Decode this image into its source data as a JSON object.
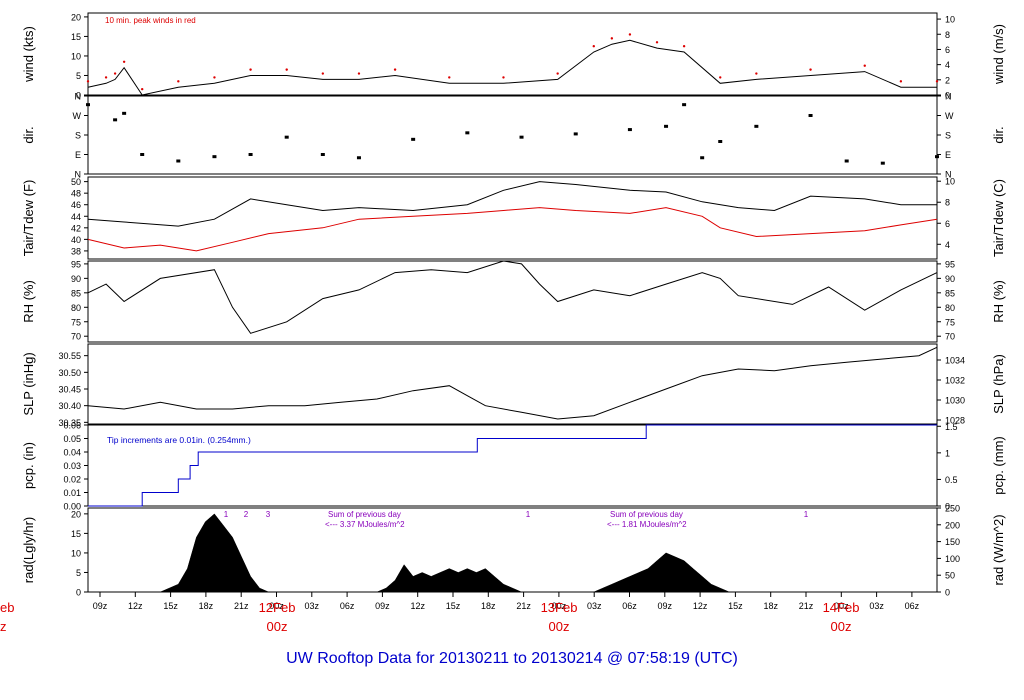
{
  "footer": {
    "text": "UW Rooftop Data for 20130211  to  20130214 @ 07:58:19  (UTC)"
  },
  "colors": {
    "red": "#dd0000",
    "blue": "#0000cc",
    "black": "#000000",
    "purple": "#8800bb"
  },
  "time_axis": {
    "ticks": [
      "09z",
      "12z",
      "15z",
      "18z",
      "21z",
      "00z",
      "03z",
      "06z",
      "09z",
      "12z",
      "15z",
      "18z",
      "21z",
      "00z",
      "03z",
      "06z",
      "09z",
      "12z",
      "15z",
      "18z",
      "21z",
      "00z",
      "03z",
      "06z"
    ],
    "day_labels": [
      {
        "date": "12Feb",
        "hour": "00z"
      },
      {
        "date": "13Feb",
        "hour": "00z"
      },
      {
        "date": "14Feb",
        "hour": "00z"
      }
    ],
    "cut_left_date": "eb",
    "cut_left_hour": "z"
  },
  "chart_data": [
    {
      "type": "line",
      "id": "wind",
      "ylabel_left": "wind (kts)",
      "ylabel_right": "wind (m/s)",
      "ylim": [
        0,
        21
      ],
      "yticks_left": [
        "0",
        "5",
        "10",
        "15",
        "20"
      ],
      "yticks_left_values": [
        0,
        5,
        10,
        15,
        20
      ],
      "right_ylim": [
        0,
        10.8
      ],
      "yticks_right": [
        "0",
        "2",
        "4",
        "6",
        "8",
        "10"
      ],
      "yticks_right_values": [
        0,
        2,
        4,
        6,
        8,
        10
      ],
      "annotation": "10 min. peak winds in red",
      "series": [
        {
          "color": "#000000",
          "x": [
            0,
            2,
            3,
            4,
            6,
            10,
            14,
            18,
            22,
            26,
            30,
            34,
            40,
            46,
            52,
            56,
            58,
            60,
            63,
            66,
            70,
            74,
            80,
            86,
            90,
            94
          ],
          "values": [
            2,
            3,
            4,
            7,
            0,
            2,
            3,
            5,
            5,
            4,
            4,
            5,
            3,
            3,
            4,
            11,
            13,
            14,
            12,
            11,
            3,
            4,
            5,
            6,
            2,
            2
          ]
        }
      ]
    },
    {
      "type": "scatter",
      "id": "dir",
      "ylabel_left": "dir.",
      "ylabel_right": "dir.",
      "yticks_left": [
        "N",
        "W",
        "S",
        "E",
        "N"
      ],
      "yticks_right": [
        "N",
        "W",
        "S",
        "E",
        "N"
      ],
      "yticks_values": [
        360,
        270,
        180,
        90,
        0
      ],
      "ylim": [
        0,
        360
      ],
      "x": [
        0,
        3,
        4,
        6,
        10,
        14,
        18,
        22,
        26,
        30,
        36,
        42,
        48,
        54,
        60,
        64,
        66,
        68,
        70,
        74,
        80,
        84,
        88,
        94
      ],
      "values": [
        320,
        250,
        280,
        90,
        60,
        80,
        90,
        170,
        90,
        75,
        160,
        190,
        170,
        185,
        205,
        220,
        320,
        75,
        150,
        220,
        270,
        60,
        50,
        80
      ]
    },
    {
      "type": "line",
      "id": "temp",
      "ylabel_left": "Tair/Tdew (F)",
      "ylabel_right": "Tair/Tdew (C)",
      "ylim": [
        36.6,
        50.8
      ],
      "yticks_left": [
        "38",
        "40",
        "42",
        "44",
        "46",
        "48",
        "50"
      ],
      "yticks_left_values": [
        38,
        40,
        42,
        44,
        46,
        48,
        50
      ],
      "right_ylim": [
        2.6,
        10.4
      ],
      "yticks_right": [
        "4",
        "6",
        "8",
        "10"
      ],
      "yticks_right_values": [
        4,
        6,
        8,
        10
      ],
      "series": [
        {
          "name": "Tair",
          "color": "#000000",
          "x": [
            0,
            4,
            10,
            14,
            18,
            22,
            26,
            30,
            36,
            42,
            46,
            50,
            54,
            60,
            64,
            68,
            72,
            76,
            80,
            86,
            90,
            94
          ],
          "values": [
            43.5,
            43,
            42.3,
            43.5,
            47,
            46,
            45,
            45.5,
            45,
            46,
            48.5,
            50,
            49.5,
            48.5,
            48.2,
            46.5,
            45.5,
            45,
            47.5,
            47,
            46,
            46
          ]
        },
        {
          "name": "Tdew",
          "color": "#dd0000",
          "x": [
            0,
            4,
            8,
            12,
            16,
            20,
            26,
            30,
            36,
            42,
            46,
            50,
            54,
            60,
            64,
            68,
            70,
            74,
            80,
            86,
            90,
            94
          ],
          "values": [
            40,
            38.5,
            39,
            38,
            39.5,
            41,
            42,
            43.5,
            44,
            44.5,
            45,
            45.5,
            45,
            44.5,
            45.5,
            44,
            42,
            40.5,
            41,
            41.5,
            42.5,
            43.5
          ]
        }
      ]
    },
    {
      "type": "line",
      "id": "rh",
      "ylabel_left": "RH (%)",
      "ylabel_right": "RH (%)",
      "ylim": [
        68,
        96
      ],
      "yticks_left": [
        "70",
        "75",
        "80",
        "85",
        "90",
        "95"
      ],
      "yticks_left_values": [
        70,
        75,
        80,
        85,
        90,
        95
      ],
      "yticks_right": [
        "70",
        "75",
        "80",
        "85",
        "90",
        "95"
      ],
      "series": [
        {
          "color": "#000000",
          "x": [
            0,
            2,
            4,
            8,
            14,
            16,
            18,
            22,
            26,
            30,
            34,
            38,
            42,
            46,
            48,
            50,
            52,
            56,
            60,
            64,
            68,
            70,
            72,
            78,
            82,
            86,
            90,
            94
          ],
          "values": [
            85,
            88,
            82,
            90,
            93,
            80,
            71,
            75,
            83,
            86,
            92,
            93,
            92,
            96,
            95,
            88,
            82,
            86,
            84,
            88,
            92,
            90,
            84,
            81,
            87,
            79,
            86,
            92
          ]
        }
      ]
    },
    {
      "type": "line",
      "id": "slp",
      "ylabel_left": "SLP (inHg)",
      "ylabel_right": "SLP (hPa)",
      "ylim": [
        30.345,
        30.585
      ],
      "yticks_left": [
        "30.35",
        "30.40",
        "30.45",
        "30.50",
        "30.55"
      ],
      "yticks_left_values": [
        30.35,
        30.4,
        30.45,
        30.5,
        30.55
      ],
      "right_ylim": [
        1027.6,
        1035.6
      ],
      "yticks_right": [
        "1028",
        "1030",
        "1032",
        "1034"
      ],
      "yticks_right_values": [
        1028,
        1030,
        1032,
        1034
      ],
      "series": [
        {
          "color": "#000000",
          "x": [
            0,
            4,
            8,
            12,
            16,
            20,
            24,
            28,
            32,
            36,
            40,
            42,
            44,
            48,
            52,
            56,
            60,
            64,
            68,
            72,
            76,
            80,
            84,
            88,
            92,
            94
          ],
          "values": [
            30.4,
            30.39,
            30.41,
            30.39,
            30.39,
            30.4,
            30.4,
            30.41,
            30.42,
            30.445,
            30.46,
            30.43,
            30.4,
            30.38,
            30.36,
            30.37,
            30.41,
            30.45,
            30.49,
            30.51,
            30.505,
            30.52,
            30.53,
            30.54,
            30.55,
            30.575
          ]
        }
      ]
    },
    {
      "type": "line",
      "id": "pcp",
      "ylabel_left": "pcp. (in)",
      "ylabel_right": "pcp. (mm)",
      "ylim": [
        0,
        0.06
      ],
      "yticks_left": [
        "0.00",
        "0.01",
        "0.02",
        "0.03",
        "0.04",
        "0.05",
        "0.06"
      ],
      "yticks_left_values": [
        0,
        0.01,
        0.02,
        0.03,
        0.04,
        0.05,
        0.06
      ],
      "right_ylim": [
        0,
        1.524
      ],
      "yticks_right": [
        "0",
        "0.5",
        "1",
        "1.5"
      ],
      "yticks_right_values": [
        0,
        0.5,
        1,
        1.5
      ],
      "annotation": "Tip increments are 0.01in. (0.254mm.)",
      "series": [
        {
          "color": "#0000cc",
          "x": [
            0,
            6,
            6,
            10,
            10,
            11.3,
            11.3,
            12.2,
            12.2,
            43.1,
            43.1,
            61.8,
            61.8,
            94
          ],
          "values": [
            0,
            0,
            0.01,
            0.01,
            0.02,
            0.02,
            0.03,
            0.03,
            0.04,
            0.04,
            0.05,
            0.05,
            0.06,
            0.06
          ]
        }
      ]
    },
    {
      "type": "area",
      "id": "rad",
      "ylabel_left": "rad(Lgly/hr)",
      "ylabel_right": "rad (W/m^2)",
      "ylim": [
        0,
        21.5
      ],
      "yticks_left": [
        "0",
        "5",
        "10",
        "15",
        "20"
      ],
      "yticks_left_values": [
        0,
        5,
        10,
        15,
        20
      ],
      "right_ylim": [
        0,
        250
      ],
      "yticks_right": [
        "0",
        "50",
        "100",
        "150",
        "200",
        "250"
      ],
      "yticks_right_values": [
        0,
        50,
        100,
        150,
        200,
        250
      ],
      "annotations": {
        "day1_labels": [
          "1",
          "2",
          "3"
        ],
        "sum1_title": "Sum of previous day",
        "sum1_text": "<--- 3.37 MJoules/m^2",
        "day2_label": "1",
        "sum2_title": "Sum of previous day",
        "sum2_text": "<--- 1.81 MJoules/m^2",
        "day3_label": "1"
      },
      "series": [
        {
          "color": "#000000",
          "x": [
            8,
            9,
            10,
            11,
            12,
            13,
            14,
            15,
            16,
            17,
            18,
            19,
            20,
            32,
            33,
            34,
            35,
            36,
            37,
            38,
            39,
            40,
            41,
            42,
            43,
            44,
            45,
            46,
            47,
            48,
            56,
            57,
            58,
            59,
            60,
            61,
            62,
            63,
            64,
            65,
            66,
            67,
            68,
            69,
            70,
            71,
            72
          ],
          "values": [
            0,
            1,
            2,
            6,
            14,
            18,
            20,
            17,
            14,
            9,
            4,
            1,
            0,
            0,
            1,
            3,
            7,
            4,
            5,
            4,
            5,
            6,
            5,
            6,
            5,
            6,
            4,
            2,
            1,
            0,
            0,
            1,
            2,
            3,
            4,
            5,
            6,
            8,
            10,
            9,
            8,
            6,
            4,
            2,
            1,
            0,
            0
          ]
        }
      ]
    }
  ]
}
